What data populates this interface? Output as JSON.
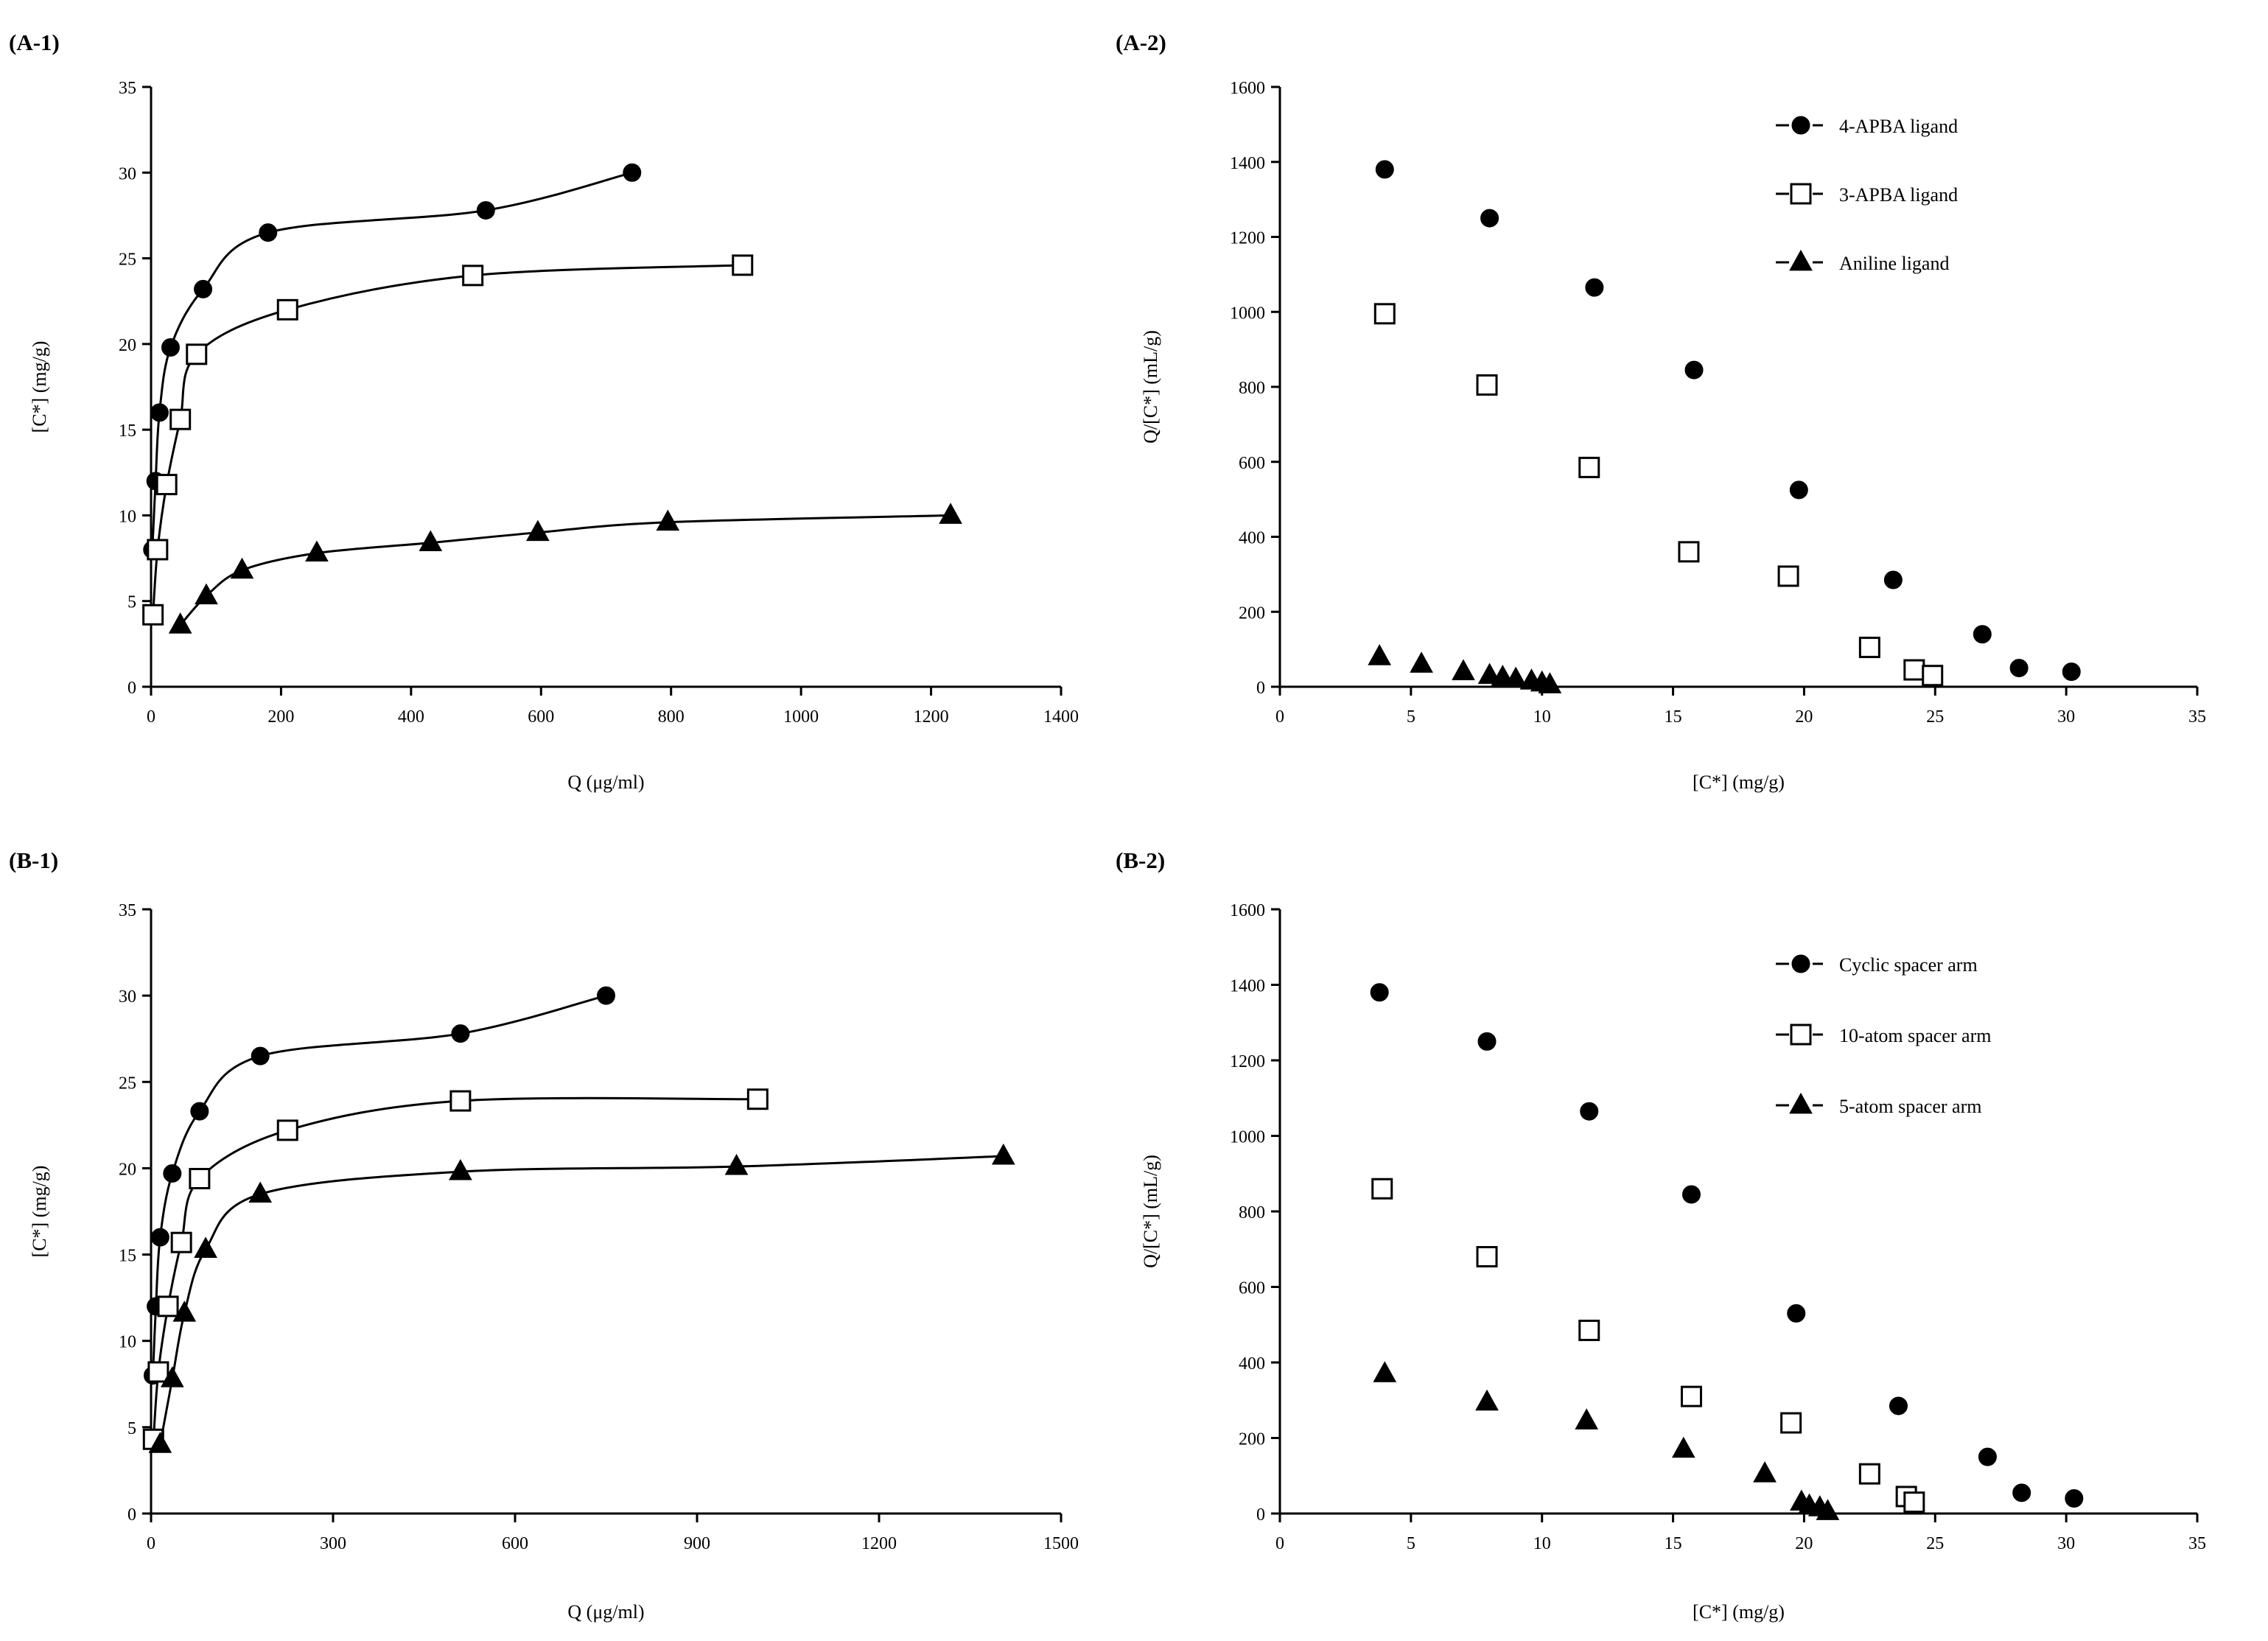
{
  "chart_data": [
    {
      "id": "A1",
      "panel_label": "(A-1)",
      "type": "line",
      "xlabel": "Q (μg/ml)",
      "ylabel": "[C*] (mg/g)",
      "xlim": [
        0,
        1400
      ],
      "ylim": [
        0,
        35
      ],
      "xticks": [
        0,
        200,
        400,
        600,
        800,
        1000,
        1200,
        1400
      ],
      "yticks": [
        0,
        5,
        10,
        15,
        20,
        25,
        30,
        35
      ],
      "xtick_labels": [
        "0",
        "200",
        "400",
        "600",
        "800",
        "1000",
        "1200",
        "1400"
      ],
      "ytick_labels": [
        "0",
        "5",
        "10",
        "15",
        "20",
        "25",
        "30",
        "35"
      ],
      "series": [
        {
          "name": "4-APBA ligand",
          "marker": "circle",
          "connected": true,
          "x": [
            2,
            7,
            13,
            30,
            80,
            180,
            515,
            740
          ],
          "y": [
            8,
            12,
            16,
            19.8,
            23.2,
            26.5,
            27.8,
            30
          ]
        },
        {
          "name": "3-APBA ligand",
          "marker": "square",
          "connected": true,
          "x": [
            3,
            10,
            24,
            45,
            70,
            210,
            495,
            910
          ],
          "y": [
            4.2,
            8,
            11.8,
            15.6,
            19.4,
            22,
            24,
            24.6
          ]
        },
        {
          "name": "Aniline ligand",
          "marker": "triangle",
          "connected": true,
          "x": [
            45,
            85,
            140,
            255,
            430,
            595,
            795,
            1230
          ],
          "y": [
            3.6,
            5.3,
            6.8,
            7.8,
            8.4,
            9,
            9.6,
            10
          ]
        }
      ]
    },
    {
      "id": "A2",
      "panel_label": "(A-2)",
      "type": "scatter",
      "xlabel": "[C*] (mg/g)",
      "ylabel": "Q/[C*] (mL/g)",
      "xlim": [
        0,
        35
      ],
      "ylim": [
        0,
        1600
      ],
      "xticks": [
        0,
        5,
        10,
        15,
        20,
        25,
        30,
        35
      ],
      "yticks": [
        0,
        200,
        400,
        600,
        800,
        1000,
        1200,
        1400,
        1600
      ],
      "xtick_labels": [
        "0",
        "5",
        "10",
        "15",
        "20",
        "25",
        "30",
        "35"
      ],
      "ytick_labels": [
        "0",
        "200",
        "400",
        "600",
        "800",
        "1000",
        "1200",
        "1400",
        "1600"
      ],
      "legend": {
        "position": "top-right",
        "entries": [
          "4-APBA ligand",
          "3-APBA ligand",
          "Aniline ligand"
        ]
      },
      "series": [
        {
          "name": "4-APBA ligand",
          "marker": "circle",
          "connected": false,
          "x": [
            4,
            8,
            12,
            15.8,
            19.8,
            23.4,
            26.8,
            28.2,
            30.2
          ],
          "y": [
            1380,
            1250,
            1065,
            845,
            525,
            285,
            140,
            50,
            40
          ]
        },
        {
          "name": "3-APBA ligand",
          "marker": "square",
          "connected": false,
          "x": [
            4,
            7.9,
            11.8,
            15.6,
            19.4,
            22.5,
            24.2,
            24.9
          ],
          "y": [
            995,
            805,
            585,
            360,
            295,
            105,
            45,
            30
          ]
        },
        {
          "name": "Aniline ligand",
          "marker": "triangle",
          "connected": false,
          "x": [
            3.8,
            5.4,
            7,
            8,
            8.5,
            9,
            9.6,
            10,
            10.3
          ],
          "y": [
            80,
            60,
            40,
            30,
            25,
            20,
            15,
            10,
            5
          ]
        }
      ]
    },
    {
      "id": "B1",
      "panel_label": "(B-1)",
      "type": "line",
      "xlabel": "Q (μg/ml)",
      "ylabel": "[C*] (mg/g)",
      "xlim": [
        0,
        1500
      ],
      "ylim": [
        0,
        35
      ],
      "xticks": [
        0,
        300,
        600,
        900,
        1200,
        1500
      ],
      "yticks": [
        0,
        5,
        10,
        15,
        20,
        25,
        30,
        35
      ],
      "xtick_labels": [
        "0",
        "300",
        "600",
        "900",
        "1200",
        "1500"
      ],
      "ytick_labels": [
        "0",
        "5",
        "10",
        "15",
        "20",
        "25",
        "30",
        "35"
      ],
      "series": [
        {
          "name": "Cyclic spacer arm",
          "marker": "circle",
          "connected": true,
          "x": [
            3,
            8,
            15,
            35,
            80,
            180,
            510,
            750
          ],
          "y": [
            8,
            12,
            16,
            19.7,
            23.3,
            26.5,
            27.8,
            30
          ]
        },
        {
          "name": "10-atom spacer arm",
          "marker": "square",
          "connected": true,
          "x": [
            4,
            12,
            28,
            50,
            80,
            225,
            510,
            1000
          ],
          "y": [
            4.3,
            8.2,
            12,
            15.7,
            19.4,
            22.2,
            23.9,
            24
          ]
        },
        {
          "name": "5-atom spacer arm",
          "marker": "triangle",
          "connected": true,
          "x": [
            15,
            35,
            55,
            90,
            180,
            510,
            965,
            1405
          ],
          "y": [
            4,
            7.8,
            11.6,
            15.3,
            18.5,
            19.8,
            20.1,
            20.7
          ]
        }
      ]
    },
    {
      "id": "B2",
      "panel_label": "(B-2)",
      "type": "scatter",
      "xlabel": "[C*] (mg/g)",
      "ylabel": "Q/[C*] (mL/g)",
      "xlim": [
        0,
        35
      ],
      "ylim": [
        0,
        1600
      ],
      "xticks": [
        0,
        5,
        10,
        15,
        20,
        25,
        30,
        35
      ],
      "yticks": [
        0,
        200,
        400,
        600,
        800,
        1000,
        1200,
        1400,
        1600
      ],
      "xtick_labels": [
        "0",
        "5",
        "10",
        "15",
        "20",
        "25",
        "30",
        "35"
      ],
      "ytick_labels": [
        "0",
        "200",
        "400",
        "600",
        "800",
        "1000",
        "1200",
        "1400",
        "1600"
      ],
      "legend": {
        "position": "top-right",
        "entries": [
          "Cyclic spacer arm",
          "10-atom spacer arm",
          "5-atom spacer arm"
        ]
      },
      "series": [
        {
          "name": "Cyclic spacer arm",
          "marker": "circle",
          "connected": false,
          "x": [
            3.8,
            7.9,
            11.8,
            15.7,
            19.7,
            23.6,
            27,
            28.3,
            30.3
          ],
          "y": [
            1380,
            1250,
            1065,
            845,
            530,
            285,
            150,
            55,
            40
          ]
        },
        {
          "name": "10-atom spacer arm",
          "marker": "square",
          "connected": false,
          "x": [
            3.9,
            7.9,
            11.8,
            15.7,
            19.5,
            22.5,
            23.9,
            24.2
          ],
          "y": [
            860,
            680,
            485,
            310,
            240,
            105,
            45,
            30
          ]
        },
        {
          "name": "5-atom spacer arm",
          "marker": "triangle",
          "connected": false,
          "x": [
            4,
            7.9,
            11.7,
            15.4,
            18.5,
            19.9,
            20.2,
            20.6,
            20.9
          ],
          "y": [
            370,
            295,
            245,
            170,
            105,
            30,
            20,
            15,
            5
          ]
        }
      ]
    }
  ]
}
